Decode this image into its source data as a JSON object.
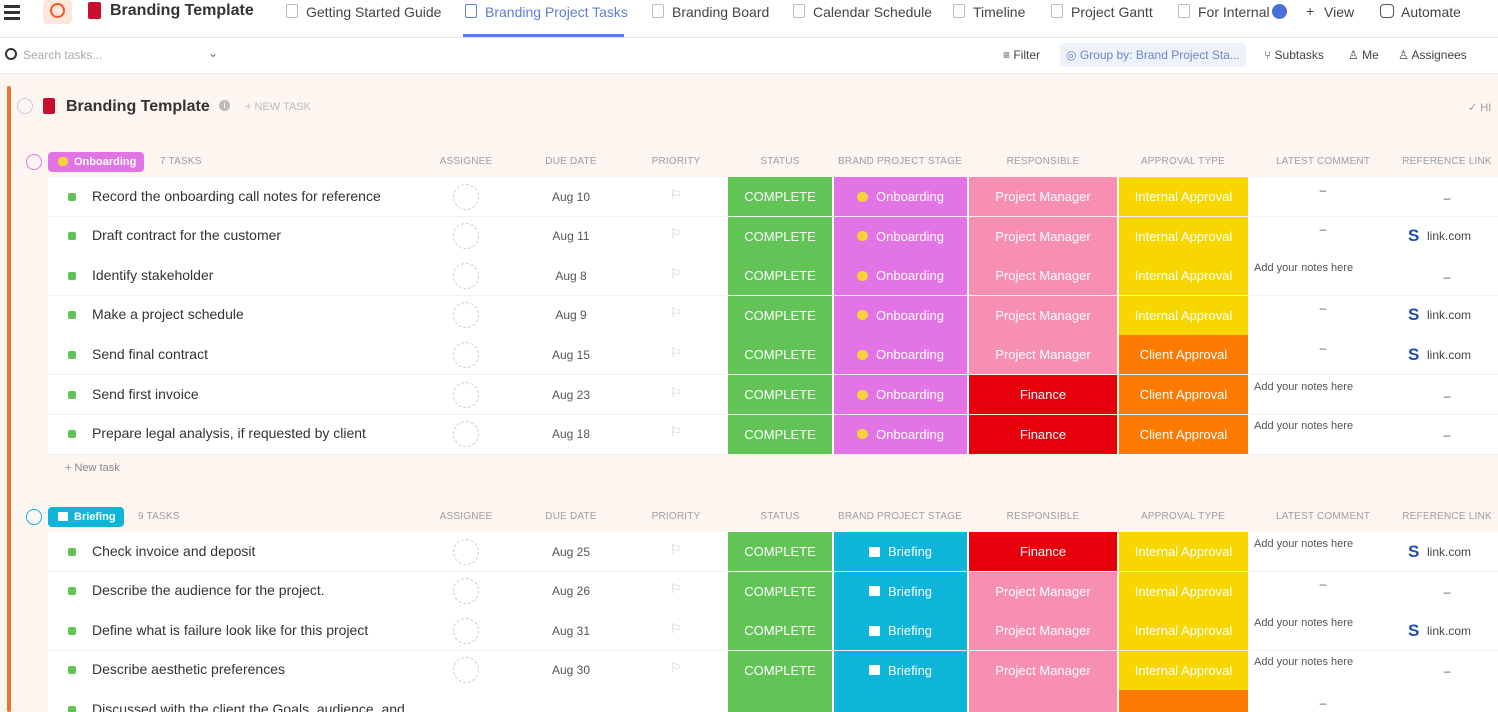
{
  "tabs": {
    "workspace": "Branding Template",
    "views": [
      "Getting Started Guide",
      "Branding Project Tasks",
      "Branding Board",
      "Calendar Schedule",
      "Timeline",
      "Project Gantt",
      "For Internal"
    ],
    "active": 1,
    "add_view": "View",
    "automate": "Automate"
  },
  "toolbar": {
    "search": "Search tasks...",
    "filter": "Filter",
    "group_by": "Group by: Brand Project Sta...",
    "subtasks": "Subtasks",
    "me": "Me",
    "assignees": "Assignees"
  },
  "list": {
    "title": "Branding Template",
    "new_task": "+ NEW TASK",
    "hide": "HI"
  },
  "columns": [
    "ASSIGNEE",
    "DUE DATE",
    "PRIORITY",
    "STATUS",
    "BRAND PROJECT STAGE",
    "RESPONSIBLE",
    "APPROVAL TYPE",
    "LATEST COMMENT",
    "REFERENCE LINK"
  ],
  "colors": {
    "COMPLETE": "#62c456",
    "Onboarding": "#e274e6",
    "Briefing": "#0db5d9",
    "Project Manager": "#f78fb3",
    "Finance": "#e5000c",
    "Internal Approval": "#f8d700",
    "Client Approval": "#ff7a00"
  },
  "groups": [
    {
      "name": "Onboarding",
      "count": "7 TASKS",
      "new_task": "+ New task",
      "tasks": [
        {
          "name": "Record the onboarding call notes for reference",
          "due": "Aug 10",
          "status": "COMPLETE",
          "stage": "Onboarding",
          "responsible": "Project Manager",
          "approval": "Internal Approval",
          "comment": "–",
          "link": "–"
        },
        {
          "name": "Draft contract for the customer",
          "due": "Aug 11",
          "status": "COMPLETE",
          "stage": "Onboarding",
          "responsible": "Project Manager",
          "approval": "Internal Approval",
          "comment": "–",
          "link": "link.com"
        },
        {
          "name": "Identify stakeholder",
          "due": "Aug 8",
          "status": "COMPLETE",
          "stage": "Onboarding",
          "responsible": "Project Manager",
          "approval": "Internal Approval",
          "comment": "Add your notes here",
          "link": "–"
        },
        {
          "name": "Make a project schedule",
          "due": "Aug 9",
          "status": "COMPLETE",
          "stage": "Onboarding",
          "responsible": "Project Manager",
          "approval": "Internal Approval",
          "comment": "–",
          "link": "link.com"
        },
        {
          "name": "Send final contract",
          "due": "Aug 15",
          "status": "COMPLETE",
          "stage": "Onboarding",
          "responsible": "Project Manager",
          "approval": "Client Approval",
          "comment": "–",
          "link": "link.com"
        },
        {
          "name": "Send first invoice",
          "due": "Aug 23",
          "status": "COMPLETE",
          "stage": "Onboarding",
          "responsible": "Finance",
          "approval": "Client Approval",
          "comment": "Add your notes here",
          "link": "–"
        },
        {
          "name": "Prepare legal analysis, if requested by client",
          "due": "Aug 18",
          "status": "COMPLETE",
          "stage": "Onboarding",
          "responsible": "Finance",
          "approval": "Client Approval",
          "comment": "Add your notes here",
          "link": "–"
        }
      ]
    },
    {
      "name": "Briefing",
      "count": "9 TASKS",
      "tasks": [
        {
          "name": "Check invoice and deposit",
          "due": "Aug 25",
          "status": "COMPLETE",
          "stage": "Briefing",
          "responsible": "Finance",
          "approval": "Internal Approval",
          "comment": "Add your notes here",
          "link": "link.com"
        },
        {
          "name": "Describe the audience for the project.",
          "due": "Aug 26",
          "status": "COMPLETE",
          "stage": "Briefing",
          "responsible": "Project Manager",
          "approval": "Internal Approval",
          "comment": "–",
          "link": "–"
        },
        {
          "name": "Define what is failure look like for this project",
          "due": "Aug 31",
          "status": "COMPLETE",
          "stage": "Briefing",
          "responsible": "Project Manager",
          "approval": "Internal Approval",
          "comment": "Add your notes here",
          "link": "link.com"
        },
        {
          "name": "Describe aesthetic preferences",
          "due": "Aug 30",
          "status": "COMPLETE",
          "stage": "Briefing",
          "responsible": "Project Manager",
          "approval": "Internal Approval",
          "comment": "Add your notes here",
          "link": "–"
        },
        {
          "name": "Discussed with the client the Goals, audience, and",
          "comment": "–",
          "cell_colors": [
            "#62c456",
            "#0db5d9",
            "#f78fb3",
            "#ff7a00"
          ]
        }
      ]
    }
  ]
}
